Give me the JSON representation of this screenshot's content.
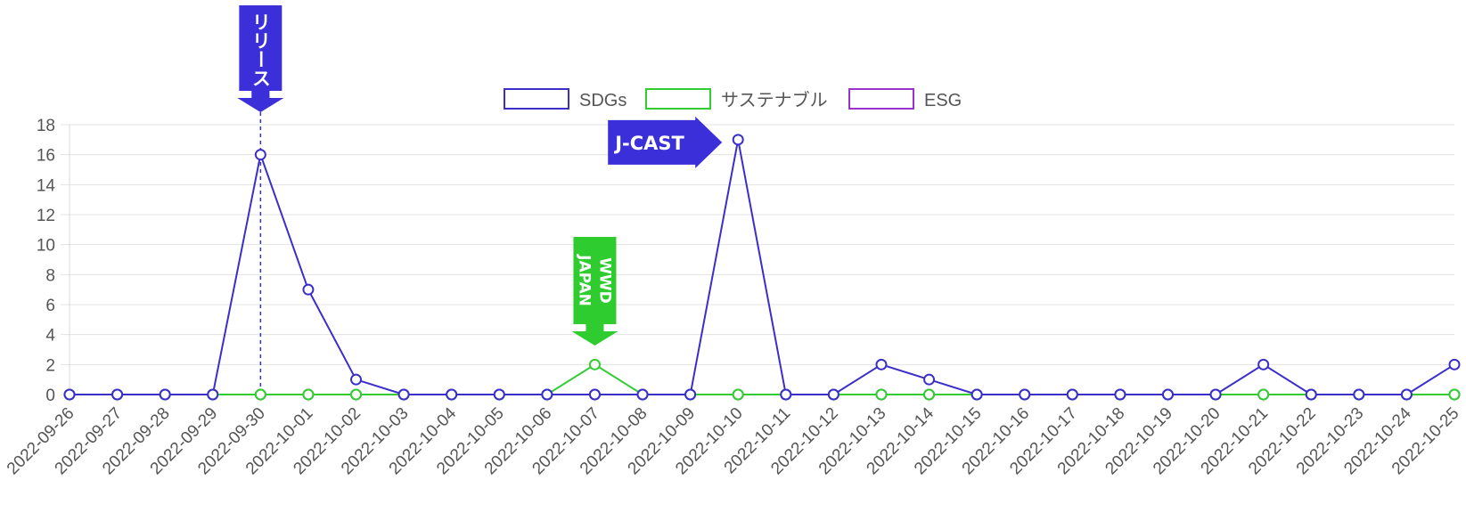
{
  "chart_data": {
    "type": "line",
    "title": "",
    "xlabel": "",
    "ylabel": "",
    "ylim": [
      0,
      18
    ],
    "yticks": [
      0,
      2,
      4,
      6,
      8,
      10,
      12,
      14,
      16,
      18
    ],
    "grid": true,
    "legend_position": "top-center",
    "categories": [
      "2022-09-26",
      "2022-09-27",
      "2022-09-28",
      "2022-09-29",
      "2022-09-30",
      "2022-10-01",
      "2022-10-02",
      "2022-10-03",
      "2022-10-04",
      "2022-10-05",
      "2022-10-06",
      "2022-10-07",
      "2022-10-08",
      "2022-10-09",
      "2022-10-10",
      "2022-10-11",
      "2022-10-12",
      "2022-10-13",
      "2022-10-14",
      "2022-10-15",
      "2022-10-16",
      "2022-10-17",
      "2022-10-18",
      "2022-10-19",
      "2022-10-20",
      "2022-10-21",
      "2022-10-22",
      "2022-10-23",
      "2022-10-24",
      "2022-10-25"
    ],
    "series": [
      {
        "name": "SDGs",
        "color": "#3a2fc9",
        "values": [
          0,
          0,
          0,
          0,
          16,
          7,
          1,
          0,
          0,
          0,
          0,
          0,
          0,
          0,
          17,
          0,
          0,
          2,
          1,
          0,
          0,
          0,
          0,
          0,
          0,
          2,
          0,
          0,
          0,
          2
        ]
      },
      {
        "name": "サステナブル",
        "color": "#33cc33",
        "values": [
          0,
          0,
          0,
          0,
          0,
          0,
          0,
          0,
          0,
          0,
          0,
          2,
          0,
          0,
          0,
          0,
          0,
          0,
          0,
          0,
          0,
          0,
          0,
          0,
          0,
          0,
          0,
          0,
          0,
          0
        ]
      },
      {
        "name": "ESG",
        "color": "#9933cc",
        "values": [
          0,
          0,
          0,
          0,
          0,
          0,
          0,
          0,
          0,
          0,
          0,
          0,
          0,
          0,
          0,
          0,
          0,
          0,
          0,
          0,
          0,
          0,
          0,
          0,
          0,
          0,
          0,
          0,
          0,
          0
        ]
      }
    ],
    "annotations": [
      {
        "label": "リリース",
        "date": "2022-09-30",
        "color": "#3a2fd9",
        "style": "down-arrow-vertical-text",
        "guide_line": true
      },
      {
        "label": "WWD JAPAN",
        "date": "2022-10-07",
        "color": "#2ecc2e",
        "style": "down-arrow-vertical-text"
      },
      {
        "label": "J-CAST",
        "date": "2022-10-10",
        "color": "#3a2fd9",
        "style": "right-arrow"
      }
    ]
  }
}
